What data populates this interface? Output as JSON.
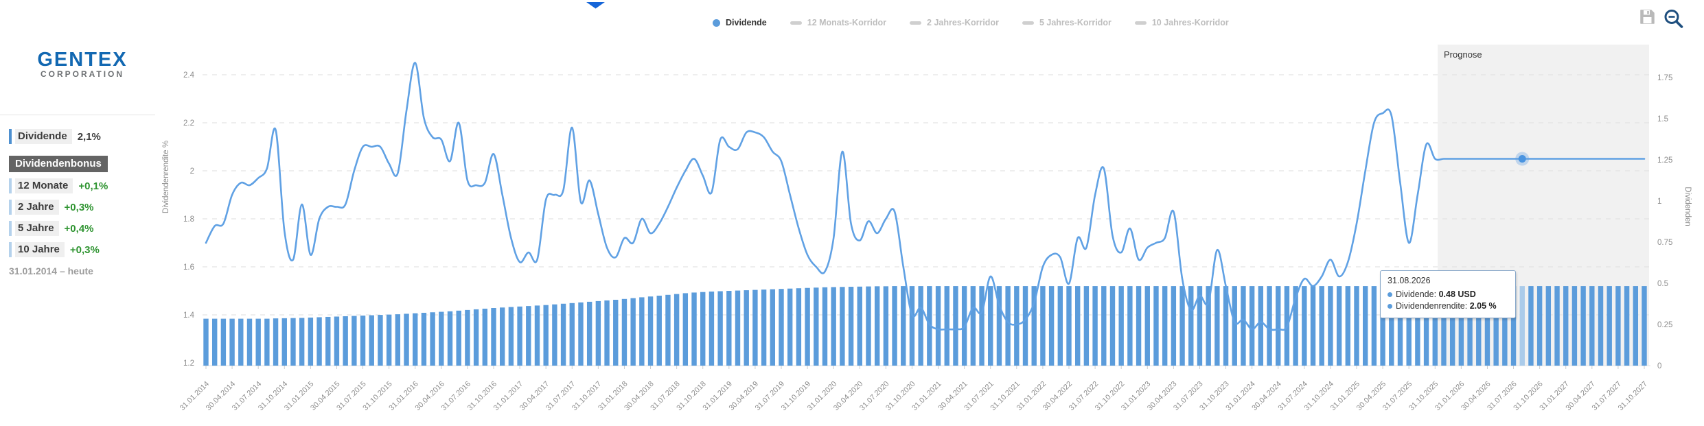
{
  "brand": {
    "name": "GENTEX",
    "subname": "CORPORATION"
  },
  "sidebar": {
    "main_stat": {
      "label": "Dividende",
      "value": "2,1%"
    },
    "bonus_header": "Dividendenbonus",
    "bonus_items": [
      {
        "label": "12 Monate",
        "value": "+0,1%"
      },
      {
        "label": "2 Jahre",
        "value": "+0,3%"
      },
      {
        "label": "5 Jahre",
        "value": "+0,4%"
      },
      {
        "label": "10 Jahre",
        "value": "+0,3%"
      }
    ],
    "period": "31.01.2014 – heute"
  },
  "legend": {
    "items": [
      {
        "label": "Dividende",
        "active": true
      },
      {
        "label": "12 Monats-Korridor",
        "active": false
      },
      {
        "label": "2 Jahres-Korridor",
        "active": false
      },
      {
        "label": "5 Jahres-Korridor",
        "active": false
      },
      {
        "label": "10 Jahres-Korridor",
        "active": false
      }
    ]
  },
  "toolbar": {
    "save_icon": "floppy-disk",
    "zoom_out_icon": "magnifier-minus"
  },
  "tooltip": {
    "date": "31.08.2026",
    "line1_label": "Dividende:",
    "line1_value": "0.48 USD",
    "line2_label": "Dividendenrendite:",
    "line2_value": "2.05 %"
  },
  "prognose_label": "Prognose",
  "colors": {
    "line_blue": "#60a1e4",
    "bar_blue": "#5b9cdb",
    "bar_highlight": "#aacbea",
    "marker_blue": "#4a94e0",
    "marker_halo": "rgba(100,160,225,0.35)",
    "grid": "#dedede",
    "baseline": "#e2e2e2",
    "axis_text": "#8c8c8c",
    "prognose_bg": "#f1f1f1",
    "diamond_blue": "#1565d8",
    "logo_blue": "#1268b2",
    "logo_gray": "#6d7073",
    "bonus_green": "#2f9431",
    "inactive_gray": "#bdbdbd"
  },
  "chart_data": {
    "type": "line+bar",
    "series_names": {
      "line": "Dividendenrendite %",
      "bars": "Dividenden (USD)"
    },
    "y_left": {
      "label": "Dividendenrendite %",
      "ticks": [
        2.4,
        2.2,
        2.0,
        1.8,
        1.6,
        1.4,
        1.2
      ],
      "range": [
        1.2,
        2.47
      ]
    },
    "y_right": {
      "label": "Dividenden",
      "ticks": [
        1.75,
        1.5,
        1.25,
        1.0,
        0.75,
        0.5,
        0.25,
        0.0
      ],
      "range": [
        0,
        1.9
      ]
    },
    "x_start": "2014-01",
    "x_step_months": 1,
    "x_quarter_labels": [
      "31.01.2014",
      "30.04.2014",
      "31.07.2014",
      "31.10.2014",
      "31.01.2015",
      "30.04.2015",
      "31.07.2015",
      "31.10.2015",
      "31.01.2016",
      "30.04.2016",
      "31.07.2016",
      "31.10.2016",
      "31.01.2017",
      "30.04.2017",
      "31.07.2017",
      "31.10.2017",
      "31.01.2018",
      "30.04.2018",
      "31.07.2018",
      "31.10.2018",
      "31.01.2019",
      "30.04.2019",
      "31.07.2019",
      "31.10.2019",
      "31.01.2020",
      "30.04.2020",
      "31.07.2020",
      "31.10.2020",
      "31.01.2021",
      "30.04.2021",
      "31.07.2021",
      "31.10.2021",
      "31.01.2022",
      "30.04.2022",
      "31.07.2022",
      "31.10.2022",
      "31.01.2023",
      "30.04.2023",
      "31.07.2023",
      "31.10.2023",
      "31.01.2024",
      "30.04.2024",
      "31.07.2024",
      "31.10.2024",
      "31.01.2025",
      "30.04.2025",
      "31.07.2025",
      "31.10.2025",
      "31.01.2026",
      "30.04.2026",
      "31.07.2026",
      "31.10.2026",
      "31.01.2027",
      "30.04.2027",
      "31.07.2027",
      "31.10.2027"
    ],
    "yield_pct": [
      1.7,
      1.77,
      1.78,
      1.9,
      1.95,
      1.94,
      1.97,
      2.01,
      2.17,
      1.75,
      1.63,
      1.86,
      1.65,
      1.8,
      1.85,
      1.85,
      1.86,
      2.0,
      2.1,
      2.1,
      2.1,
      2.03,
      1.99,
      2.25,
      2.45,
      2.22,
      2.14,
      2.13,
      2.04,
      2.2,
      1.96,
      1.94,
      1.95,
      2.07,
      1.9,
      1.72,
      1.62,
      1.66,
      1.63,
      1.88,
      1.9,
      1.92,
      2.18,
      1.87,
      1.96,
      1.82,
      1.68,
      1.64,
      1.72,
      1.7,
      1.8,
      1.74,
      1.78,
      1.85,
      1.93,
      2.0,
      2.05,
      1.98,
      1.91,
      2.13,
      2.1,
      2.09,
      2.16,
      2.16,
      2.14,
      2.08,
      2.04,
      1.9,
      1.76,
      1.65,
      1.6,
      1.58,
      1.72,
      2.08,
      1.78,
      1.71,
      1.79,
      1.74,
      1.8,
      1.83,
      1.6,
      1.4,
      1.43,
      1.36,
      1.34,
      1.34,
      1.34,
      1.35,
      1.43,
      1.41,
      1.56,
      1.44,
      1.37,
      1.36,
      1.38,
      1.45,
      1.6,
      1.65,
      1.64,
      1.53,
      1.72,
      1.68,
      1.9,
      2.01,
      1.73,
      1.66,
      1.76,
      1.63,
      1.68,
      1.7,
      1.72,
      1.83,
      1.55,
      1.42,
      1.48,
      1.45,
      1.67,
      1.52,
      1.37,
      1.38,
      1.34,
      1.37,
      1.34,
      1.34,
      1.35,
      1.47,
      1.55,
      1.52,
      1.56,
      1.63,
      1.56,
      1.62,
      1.78,
      2.0,
      2.2,
      2.24,
      2.23,
      1.95,
      1.7,
      1.9,
      2.11,
      2.05,
      2.05,
      2.05,
      2.05,
      2.05,
      2.05,
      2.05,
      2.05,
      2.05,
      2.05,
      2.05,
      2.05,
      2.05,
      2.05,
      2.05,
      2.05,
      2.05,
      2.05,
      2.05,
      2.05,
      2.05,
      2.05,
      2.05,
      2.05,
      2.05
    ],
    "dividend_usd": [
      0.285,
      0.285,
      0.285,
      0.285,
      0.285,
      0.285,
      0.285,
      0.285,
      0.287,
      0.288,
      0.289,
      0.29,
      0.292,
      0.294,
      0.296,
      0.298,
      0.3,
      0.302,
      0.304,
      0.306,
      0.308,
      0.31,
      0.312,
      0.315,
      0.318,
      0.321,
      0.324,
      0.327,
      0.33,
      0.334,
      0.338,
      0.342,
      0.346,
      0.35,
      0.353,
      0.356,
      0.359,
      0.362,
      0.365,
      0.368,
      0.372,
      0.376,
      0.38,
      0.384,
      0.388,
      0.392,
      0.396,
      0.4,
      0.405,
      0.41,
      0.415,
      0.42,
      0.425,
      0.43,
      0.435,
      0.44,
      0.444,
      0.447,
      0.45,
      0.452,
      0.454,
      0.456,
      0.458,
      0.46,
      0.462,
      0.464,
      0.466,
      0.468,
      0.47,
      0.472,
      0.474,
      0.476,
      0.477,
      0.478,
      0.479,
      0.48,
      0.481,
      0.482,
      0.482,
      0.483,
      0.483,
      0.483,
      0.483,
      0.483,
      0.483,
      0.483,
      0.483,
      0.483,
      0.483,
      0.483,
      0.483,
      0.483,
      0.483,
      0.483,
      0.483,
      0.483,
      0.483,
      0.483,
      0.483,
      0.483,
      0.483,
      0.483,
      0.483,
      0.483,
      0.483,
      0.483,
      0.483,
      0.483,
      0.483,
      0.483,
      0.483,
      0.483,
      0.483,
      0.483,
      0.483,
      0.483,
      0.483,
      0.483,
      0.483,
      0.483,
      0.483,
      0.483,
      0.483,
      0.483,
      0.483,
      0.483,
      0.483,
      0.483,
      0.483,
      0.483,
      0.483,
      0.483,
      0.483,
      0.483,
      0.483,
      0.483,
      0.483,
      0.483,
      0.483,
      0.483,
      0.483,
      0.483,
      0.483,
      0.483,
      0.483,
      0.483,
      0.483,
      0.483,
      0.483,
      0.483,
      0.483,
      0.483,
      0.483,
      0.483,
      0.483,
      0.483,
      0.483,
      0.483,
      0.483,
      0.483,
      0.483,
      0.483,
      0.483,
      0.483,
      0.483,
      0.483
    ],
    "prognose": {
      "label": "Prognose",
      "start_month_index": 141.3
    },
    "hover": {
      "month_index": 151,
      "date": "31.08.2026",
      "dividend": "0.48 USD",
      "yield_pct": "2.05 %"
    }
  }
}
